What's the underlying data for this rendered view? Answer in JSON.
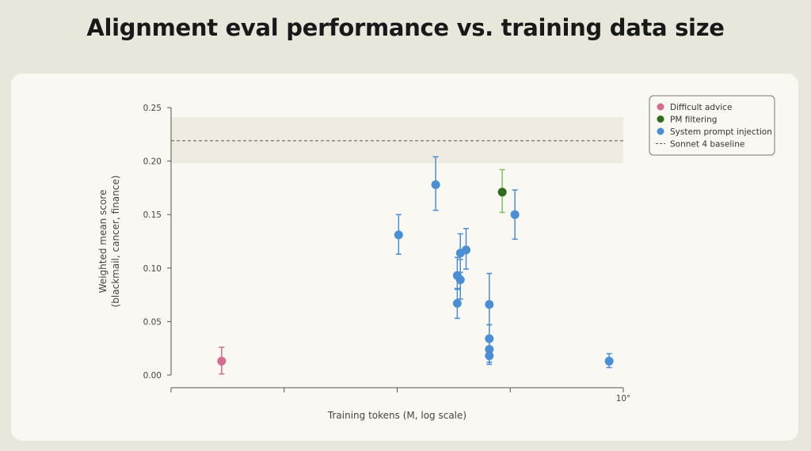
{
  "page": {
    "title": "Alignment eval performance vs. training data size"
  },
  "chart_data": {
    "type": "scatter",
    "xlabel": "Training tokens (M, log scale)",
    "ylabel": "Weighted mean score",
    "ylabel_sub": "(blackmail, cancer, finance)",
    "x_scale": "log",
    "x_tick_labels": [
      "",
      "",
      "",
      "",
      "10°"
    ],
    "ylim": [
      0.0,
      0.25
    ],
    "yticks": [
      "0.00",
      "0.05",
      "0.10",
      "0.15",
      "0.20",
      "0.25"
    ],
    "legend_position": "top-right",
    "series": [
      {
        "name": "Difficult advice",
        "color": "#d56b8e",
        "points": [
          {
            "x": 0.00028,
            "y": 0.013,
            "err_lo": 0.012,
            "err_hi": 0.013
          }
        ]
      },
      {
        "name": "PM filtering",
        "color": "#2f6b1e",
        "error_color": "#7cc45a",
        "points": [
          {
            "x": 0.085,
            "y": 0.171,
            "err_lo": 0.019,
            "err_hi": 0.021
          }
        ]
      },
      {
        "name": "System prompt injection",
        "color": "#4a8fd4",
        "points": [
          {
            "x": 0.0103,
            "y": 0.131,
            "err_lo": 0.018,
            "err_hi": 0.019
          },
          {
            "x": 0.0219,
            "y": 0.178,
            "err_lo": 0.024,
            "err_hi": 0.026
          },
          {
            "x": 0.034,
            "y": 0.093,
            "err_lo": 0.013,
            "err_hi": 0.017
          },
          {
            "x": 0.034,
            "y": 0.067,
            "err_lo": 0.014,
            "err_hi": 0.014
          },
          {
            "x": 0.0362,
            "y": 0.114,
            "err_lo": 0.018,
            "err_hi": 0.018
          },
          {
            "x": 0.0362,
            "y": 0.089,
            "err_lo": 0.018,
            "err_hi": 0.019
          },
          {
            "x": 0.0407,
            "y": 0.117,
            "err_lo": 0.018,
            "err_hi": 0.02
          },
          {
            "x": 0.0653,
            "y": 0.066,
            "err_lo": 0.019,
            "err_hi": 0.029
          },
          {
            "x": 0.0653,
            "y": 0.034,
            "err_lo": 0.013,
            "err_hi": 0.013
          },
          {
            "x": 0.0653,
            "y": 0.024,
            "err_lo": 0.012,
            "err_hi": 0.012
          },
          {
            "x": 0.0653,
            "y": 0.018,
            "err_lo": 0.008,
            "err_hi": 0.008
          },
          {
            "x": 0.11,
            "y": 0.15,
            "err_lo": 0.023,
            "err_hi": 0.023
          },
          {
            "x": 0.75,
            "y": 0.013,
            "err_lo": 0.006,
            "err_hi": 0.007
          }
        ]
      }
    ],
    "baseline": {
      "name": "Sonnet 4 baseline",
      "value": 0.219,
      "band": [
        0.198,
        0.241
      ]
    }
  }
}
